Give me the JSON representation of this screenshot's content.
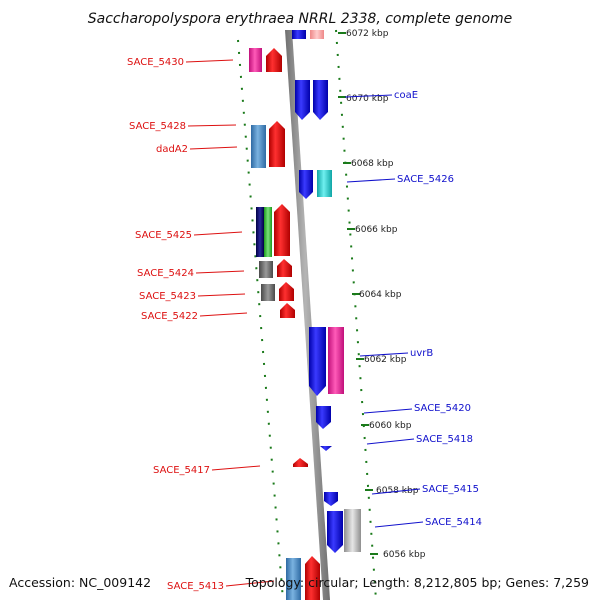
{
  "title": "Saccharopolyspora erythraea NRRL 2338, complete genome",
  "footer": {
    "accession": "Accession: NC_009142",
    "summary": "Topology: circular; Length: 8,212,805 bp; Genes: 7,259"
  },
  "colors": {
    "backbone": "#8a8a8a",
    "backbone_highlight": "#c8c8c8",
    "tick": "#1a7a1a",
    "left_label": "#dd1111",
    "right_label": "#1111cc"
  },
  "kbp_ticks": [
    "6072 kbp",
    "6070 kbp",
    "6068 kbp",
    "6066 kbp",
    "6064 kbp",
    "6062 kbp",
    "6060 kbp",
    "6058 kbp",
    "6056 kbp"
  ],
  "left_labels": [
    "SACE_5430",
    "SACE_5428",
    "dadA2",
    "SACE_5425",
    "SACE_5424",
    "SACE_5423",
    "SACE_5422",
    "SACE_5417",
    "SACE_5413"
  ],
  "right_labels": [
    "coaE",
    "SACE_5426",
    "uvrB",
    "SACE_5420",
    "SACE_5418",
    "SACE_5415",
    "SACE_5414"
  ]
}
